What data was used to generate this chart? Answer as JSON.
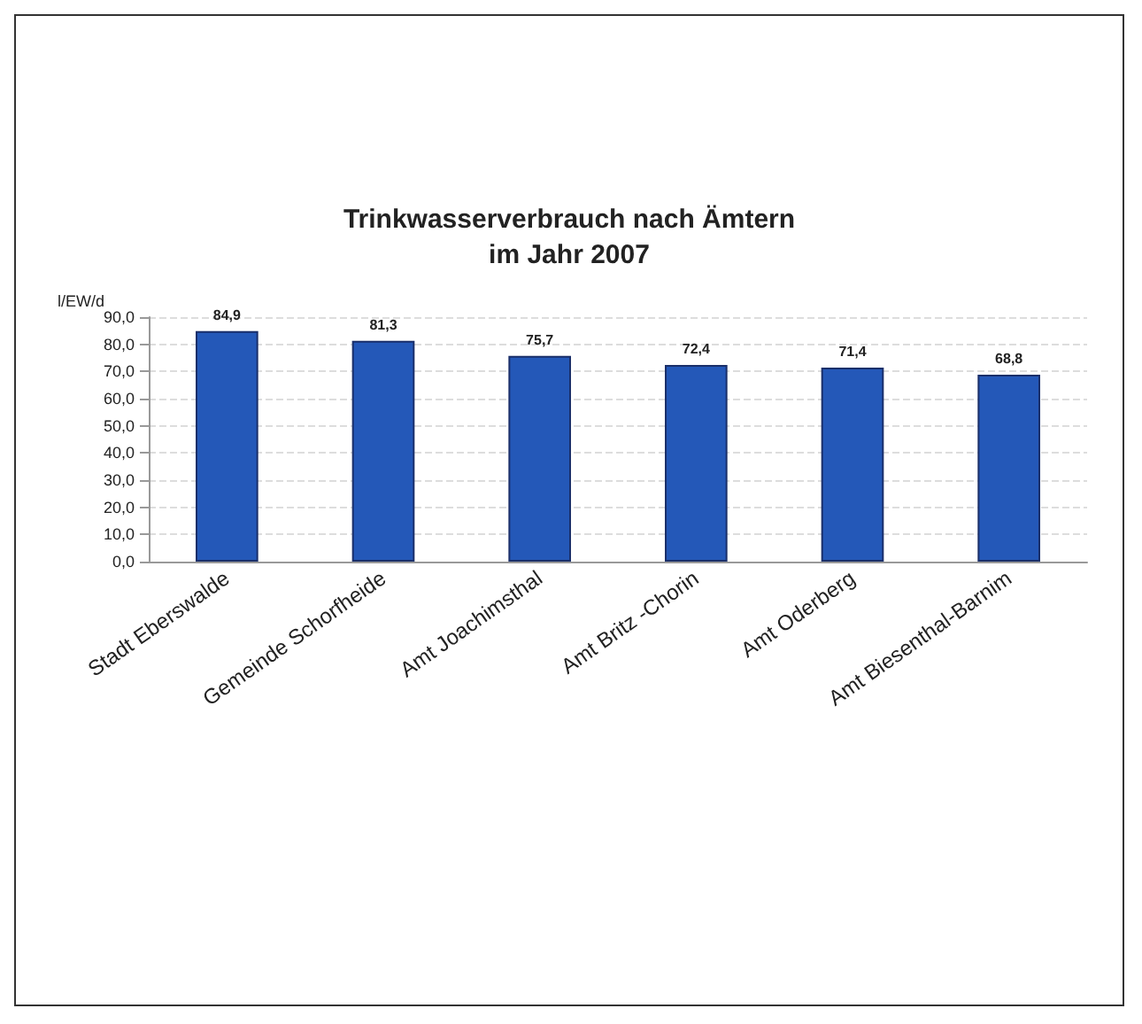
{
  "chart_data": {
    "type": "bar",
    "title": "Trinkwasserverbrauch nach Ämtern\nim Jahr 2007",
    "ylabel": "l/EW/d",
    "categories": [
      "Stadt Eberswalde",
      "Gemeinde Schorfheide",
      "Amt Joachimsthal",
      "Amt Britz -Chorin",
      "Amt Oderberg",
      "Amt Biesenthal-Barnim"
    ],
    "values": [
      84.9,
      81.3,
      75.7,
      72.4,
      71.4,
      68.8
    ],
    "value_labels": [
      "84,9",
      "81,3",
      "75,7",
      "72,4",
      "71,4",
      "68,8"
    ],
    "color": "#2458b8",
    "ylim": [
      0,
      90
    ],
    "yticks": [
      {
        "value": 0,
        "label": "0,0"
      },
      {
        "value": 10,
        "label": "10,0"
      },
      {
        "value": 20,
        "label": "20,0"
      },
      {
        "value": 30,
        "label": "30,0"
      },
      {
        "value": 40,
        "label": "40,0"
      },
      {
        "value": 50,
        "label": "50,0"
      },
      {
        "value": 60,
        "label": "60,0"
      },
      {
        "value": 70,
        "label": "70,0"
      },
      {
        "value": 80,
        "label": "80,0"
      },
      {
        "value": 90,
        "label": "90,0"
      }
    ],
    "grid": "y"
  }
}
